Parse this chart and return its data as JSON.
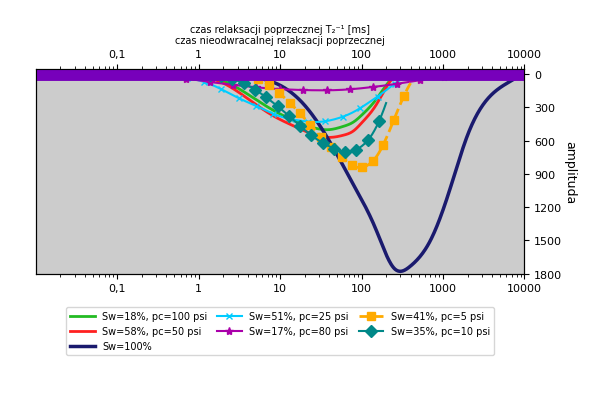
{
  "xlabel_top1": "czas relaksacji poprzecznej T₂⁻¹ [ms]",
  "xlabel_top2": "czas nieodwracalnej relaksacji poprzecznej",
  "ylabel": "amplituda",
  "xmin": 0.01,
  "xmax": 10000,
  "ymin": -1800,
  "ymax": 50,
  "yticks": [
    0,
    -300,
    -600,
    -900,
    -1200,
    -1500,
    -1800
  ],
  "ytick_labels": [
    "0",
    "300",
    "600",
    "900",
    "1200",
    "1500",
    "1800"
  ],
  "xticks_bottom": [
    0.1,
    1.0,
    10.0,
    100.0,
    1000.0,
    10000.0
  ],
  "xtick_labels": [
    "0,1",
    "1",
    "10",
    "100",
    "1000",
    "10000"
  ],
  "bg_color": "#cccccc",
  "purple_line_y": 0,
  "purple_lw": 10,
  "purple_color": "#7700bb",
  "series": [
    {
      "label": "Sw=18%, pc=100 psi",
      "color": "#22bb22",
      "linestyle": "-",
      "marker": null,
      "lw": 2.0,
      "pts_x": [
        0.5,
        1,
        2,
        4,
        8,
        15,
        25,
        40,
        60,
        80,
        100,
        150,
        200,
        300
      ],
      "pts_y": [
        0,
        -10,
        -60,
        -180,
        -320,
        -420,
        -480,
        -500,
        -470,
        -430,
        -370,
        -230,
        -100,
        -10
      ]
    },
    {
      "label": "Sw=58%, pc=50 psi",
      "color": "#ff2020",
      "linestyle": "-",
      "marker": null,
      "lw": 2.0,
      "pts_x": [
        0.5,
        1,
        2,
        4,
        8,
        15,
        25,
        40,
        60,
        80,
        100,
        150,
        200,
        300
      ],
      "pts_y": [
        0,
        -15,
        -80,
        -220,
        -370,
        -470,
        -540,
        -570,
        -550,
        -510,
        -440,
        -280,
        -120,
        -15
      ]
    },
    {
      "label": "Sw=100%",
      "color": "#1a1a6e",
      "linestyle": "-",
      "marker": null,
      "lw": 2.5,
      "pts_x": [
        0.5,
        2,
        5,
        10,
        20,
        40,
        80,
        150,
        250,
        400,
        700,
        1200,
        2000,
        4000,
        8000
      ],
      "pts_y": [
        0,
        -5,
        -30,
        -100,
        -280,
        -600,
        -1000,
        -1400,
        -1750,
        -1730,
        -1500,
        -1050,
        -550,
        -180,
        -30
      ]
    },
    {
      "label": "Sw=51%, pc=25 psi",
      "color": "#00ccff",
      "linestyle": "-",
      "marker": "x",
      "ms": 5,
      "lw": 1.5,
      "pts_x": [
        0.1,
        0.3,
        0.7,
        1.5,
        3,
        6,
        10,
        18,
        30,
        50,
        80,
        120,
        180,
        250,
        350
      ],
      "pts_y": [
        0,
        -5,
        -30,
        -100,
        -210,
        -310,
        -380,
        -420,
        -430,
        -400,
        -340,
        -260,
        -170,
        -90,
        -20
      ]
    },
    {
      "label": "Sw=17%, pc=80 psi",
      "color": "#aa00aa",
      "linestyle": "-",
      "marker": "*",
      "ms": 6,
      "lw": 1.5,
      "pts_x": [
        0.05,
        0.1,
        0.2,
        0.5,
        1,
        2,
        4,
        8,
        15,
        30,
        60,
        120,
        250,
        500,
        1000,
        3000
      ],
      "pts_y": [
        0,
        -2,
        -8,
        -25,
        -55,
        -85,
        -110,
        -130,
        -140,
        -145,
        -140,
        -120,
        -90,
        -55,
        -25,
        -5
      ]
    },
    {
      "label": "Sw=41%, pc=5 psi",
      "color": "#ffaa00",
      "linestyle": "--",
      "marker": "s",
      "ms": 6,
      "markerfacecolor": "#ffaa00",
      "lw": 2.0,
      "pts_x": [
        3,
        5,
        8,
        15,
        25,
        40,
        60,
        80,
        100,
        130,
        160,
        200,
        280,
        400
      ],
      "pts_y": [
        0,
        -30,
        -120,
        -300,
        -480,
        -640,
        -760,
        -830,
        -840,
        -800,
        -720,
        -580,
        -320,
        -80
      ]
    },
    {
      "label": "Sw=35%, pc=10 psi",
      "color": "#008888",
      "linestyle": "-",
      "marker": "D",
      "ms": 6,
      "lw": 1.5,
      "pts_x": [
        1,
        2,
        4,
        8,
        15,
        25,
        40,
        60,
        80,
        100,
        130,
        160,
        200
      ],
      "pts_y": [
        0,
        -20,
        -100,
        -250,
        -420,
        -560,
        -650,
        -700,
        -690,
        -650,
        -560,
        -440,
        -260
      ]
    }
  ]
}
